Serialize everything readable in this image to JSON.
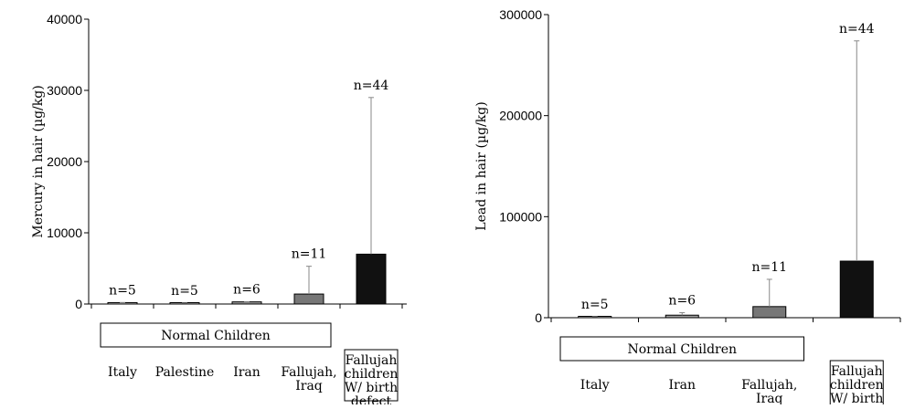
{
  "chart_data": [
    {
      "type": "bar",
      "ylabel": "Mercury in hair (µg/kg)",
      "ylim": [
        0,
        40000
      ],
      "yticks": [
        0,
        10000,
        20000,
        30000,
        40000
      ],
      "categories": [
        "Italy",
        "Palestine",
        "Iran",
        "Fallujah, Iraq",
        "Fallujah children W/ birth defect"
      ],
      "values": [
        200,
        150,
        300,
        1400,
        7000
      ],
      "error_upper": [
        200,
        150,
        300,
        5300,
        29000
      ],
      "n_labels": [
        "n=5",
        "n=5",
        "n=6",
        "n=11",
        "n=44"
      ],
      "bar_colors": [
        "#c8c8c8",
        "#c8c8c8",
        "#a0a0a0",
        "#777777",
        "#111111"
      ],
      "group_label": "Normal Children",
      "group_span": [
        0,
        3
      ]
    },
    {
      "type": "bar",
      "ylabel": "Lead in hair (µg/kg)",
      "ylim": [
        0,
        300000
      ],
      "yticks": [
        0,
        100000,
        200000,
        300000
      ],
      "categories": [
        "Italy",
        "Iran",
        "Fallujah, Iraq",
        "Fallujah children W/ birth defect"
      ],
      "values": [
        1000,
        2500,
        11000,
        56000
      ],
      "error_upper": [
        1000,
        5000,
        38000,
        274000
      ],
      "n_labels": [
        "n=5",
        "n=6",
        "n=11",
        "n=44"
      ],
      "bar_colors": [
        "#c8c8c8",
        "#a0a0a0",
        "#777777",
        "#111111"
      ],
      "group_label": "Normal Children",
      "group_span": [
        0,
        2
      ]
    }
  ]
}
